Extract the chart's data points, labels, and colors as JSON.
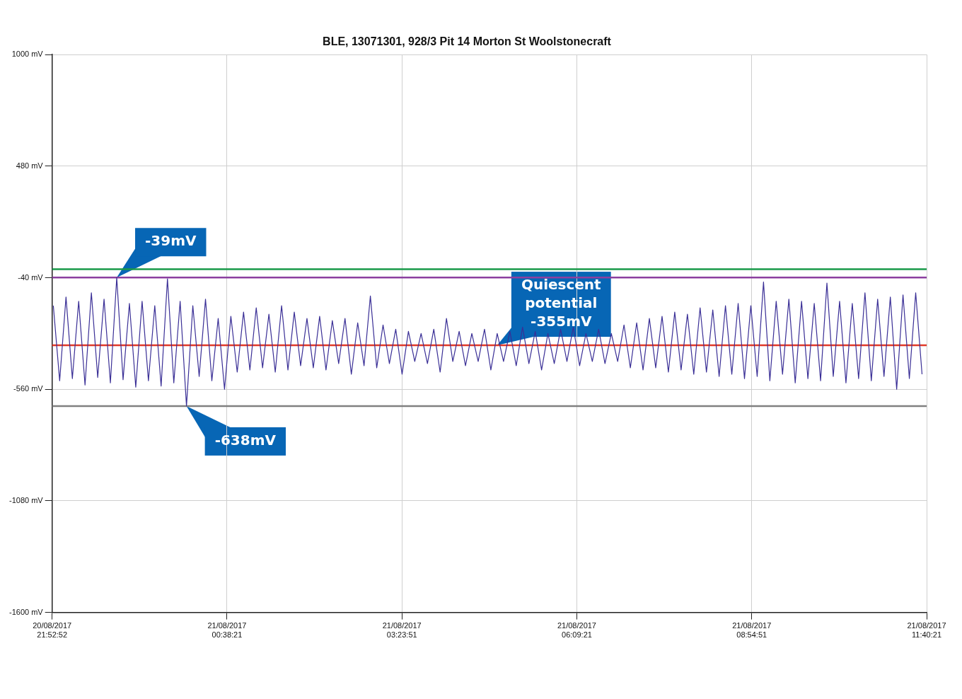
{
  "chart_data": {
    "type": "line",
    "title": "BLE, 13071301, 928/3 Pit 14 Morton St Woolstonecraft",
    "x": [
      "2017-08-20T21:54",
      "2017-08-20T22:00",
      "2017-08-20T22:06",
      "2017-08-20T22:12",
      "2017-08-20T22:18",
      "2017-08-20T22:24",
      "2017-08-20T22:30",
      "2017-08-20T22:36",
      "2017-08-20T22:42",
      "2017-08-20T22:48",
      "2017-08-20T22:54",
      "2017-08-20T23:00",
      "2017-08-20T23:06",
      "2017-08-20T23:12",
      "2017-08-20T23:18",
      "2017-08-20T23:24",
      "2017-08-20T23:30",
      "2017-08-20T23:36",
      "2017-08-20T23:42",
      "2017-08-20T23:48",
      "2017-08-20T23:54",
      "2017-08-21T00:00",
      "2017-08-21T00:06",
      "2017-08-21T00:12",
      "2017-08-21T00:18",
      "2017-08-21T00:24",
      "2017-08-21T00:30",
      "2017-08-21T00:36",
      "2017-08-21T00:42",
      "2017-08-21T00:48",
      "2017-08-21T00:54",
      "2017-08-21T01:00",
      "2017-08-21T01:06",
      "2017-08-21T01:12",
      "2017-08-21T01:18",
      "2017-08-21T01:24",
      "2017-08-21T01:30",
      "2017-08-21T01:36",
      "2017-08-21T01:42",
      "2017-08-21T01:48",
      "2017-08-21T01:54",
      "2017-08-21T02:00",
      "2017-08-21T02:06",
      "2017-08-21T02:12",
      "2017-08-21T02:18",
      "2017-08-21T02:24",
      "2017-08-21T02:30",
      "2017-08-21T02:36",
      "2017-08-21T02:42",
      "2017-08-21T02:48",
      "2017-08-21T02:54",
      "2017-08-21T03:00",
      "2017-08-21T03:06",
      "2017-08-21T03:12",
      "2017-08-21T03:18",
      "2017-08-21T03:24",
      "2017-08-21T03:30",
      "2017-08-21T03:36",
      "2017-08-21T03:42",
      "2017-08-21T03:48",
      "2017-08-21T03:54",
      "2017-08-21T04:00",
      "2017-08-21T04:06",
      "2017-08-21T04:12",
      "2017-08-21T04:18",
      "2017-08-21T04:24",
      "2017-08-21T04:30",
      "2017-08-21T04:36",
      "2017-08-21T04:42",
      "2017-08-21T04:48",
      "2017-08-21T04:54",
      "2017-08-21T05:00",
      "2017-08-21T05:06",
      "2017-08-21T05:12",
      "2017-08-21T05:18",
      "2017-08-21T05:24",
      "2017-08-21T05:30",
      "2017-08-21T05:36",
      "2017-08-21T05:42",
      "2017-08-21T05:48",
      "2017-08-21T05:54",
      "2017-08-21T06:00",
      "2017-08-21T06:06",
      "2017-08-21T06:12",
      "2017-08-21T06:18",
      "2017-08-21T06:24",
      "2017-08-21T06:30",
      "2017-08-21T06:36",
      "2017-08-21T06:42",
      "2017-08-21T06:48",
      "2017-08-21T06:54",
      "2017-08-21T07:00",
      "2017-08-21T07:06",
      "2017-08-21T07:12",
      "2017-08-21T07:18",
      "2017-08-21T07:24",
      "2017-08-21T07:30",
      "2017-08-21T07:36",
      "2017-08-21T07:42",
      "2017-08-21T07:48",
      "2017-08-21T07:54",
      "2017-08-21T08:00",
      "2017-08-21T08:06",
      "2017-08-21T08:12",
      "2017-08-21T08:18",
      "2017-08-21T08:24",
      "2017-08-21T08:30",
      "2017-08-21T08:36",
      "2017-08-21T08:42",
      "2017-08-21T08:48",
      "2017-08-21T08:54",
      "2017-08-21T09:00",
      "2017-08-21T09:06",
      "2017-08-21T09:12",
      "2017-08-21T09:18",
      "2017-08-21T09:24",
      "2017-08-21T09:30",
      "2017-08-21T09:36",
      "2017-08-21T09:42",
      "2017-08-21T09:48",
      "2017-08-21T09:54",
      "2017-08-21T10:00",
      "2017-08-21T10:06",
      "2017-08-21T10:12",
      "2017-08-21T10:18",
      "2017-08-21T10:24",
      "2017-08-21T10:30",
      "2017-08-21T10:36",
      "2017-08-21T10:42",
      "2017-08-21T10:48",
      "2017-08-21T10:54",
      "2017-08-21T11:00",
      "2017-08-21T11:06",
      "2017-08-21T11:12",
      "2017-08-21T11:18",
      "2017-08-21T11:24",
      "2017-08-21T11:30",
      "2017-08-21T11:36"
    ],
    "series": [
      {
        "color": "#3a2f96",
        "values": [
          -170,
          -520,
          -130,
          -510,
          -150,
          -540,
          -110,
          -505,
          -140,
          -530,
          -39,
          -515,
          -160,
          -550,
          -150,
          -520,
          -170,
          -545,
          -45,
          -530,
          -150,
          -638,
          -170,
          -500,
          -140,
          -520,
          -230,
          -560,
          -220,
          -480,
          -200,
          -470,
          -180,
          -460,
          -210,
          -480,
          -170,
          -470,
          -200,
          -450,
          -230,
          -460,
          -220,
          -470,
          -240,
          -440,
          -230,
          -490,
          -250,
          -450,
          -125,
          -460,
          -260,
          -440,
          -280,
          -490,
          -290,
          -430,
          -300,
          -440,
          -280,
          -480,
          -230,
          -430,
          -290,
          -450,
          -300,
          -430,
          -280,
          -470,
          -300,
          -430,
          -290,
          -450,
          -270,
          -440,
          -290,
          -470,
          -300,
          -440,
          -280,
          -430,
          -270,
          -450,
          -300,
          -430,
          -280,
          -440,
          -300,
          -430,
          -260,
          -460,
          -250,
          -470,
          -230,
          -460,
          -220,
          -480,
          -200,
          -470,
          -210,
          -490,
          -180,
          -480,
          -190,
          -500,
          -170,
          -490,
          -160,
          -510,
          -170,
          -500,
          -60,
          -520,
          -150,
          -490,
          -140,
          -530,
          -150,
          -510,
          -160,
          -520,
          -65,
          -500,
          -150,
          -530,
          -160,
          -510,
          -110,
          -520,
          -140,
          -500,
          -130,
          -560,
          -120,
          -510,
          -110,
          -490
        ]
      }
    ],
    "xlim": [
      "2017-08-20T21:52:52",
      "2017-08-21T11:40:21"
    ],
    "xticks": [
      {
        "value": "2017-08-20T21:52:52",
        "label": "20/08/2017 21:52:52"
      },
      {
        "value": "2017-08-21T00:38:21",
        "label": "21/08/2017 00:38:21"
      },
      {
        "value": "2017-08-21T03:23:51",
        "label": "21/08/2017 03:23:51"
      },
      {
        "value": "2017-08-21T06:09:21",
        "label": "21/08/2017 06:09:21"
      },
      {
        "value": "2017-08-21T08:54:51",
        "label": "21/08/2017 08:54:51"
      },
      {
        "value": "2017-08-21T11:40:21",
        "label": "21/08/2017 11:40:21"
      }
    ],
    "ylim": [
      -1600,
      1000
    ],
    "yticks": [
      {
        "value": 1000,
        "label": "1000 mV"
      },
      {
        "value": 480,
        "label": "480 mV"
      },
      {
        "value": -40,
        "label": "-40 mV"
      },
      {
        "value": -560,
        "label": "-560 mV"
      },
      {
        "value": -1080,
        "label": "-1080 mV"
      },
      {
        "value": -1600,
        "label": "-1600 mV"
      }
    ],
    "ref_lines": [
      {
        "axis": "y",
        "value": 0,
        "color": "#1a9a4a"
      },
      {
        "axis": "y",
        "value": -39,
        "color": "#8b3fa0"
      },
      {
        "axis": "y",
        "value": -355,
        "color": "#e03a2a"
      },
      {
        "axis": "y",
        "value": -638,
        "color": "#808080"
      }
    ],
    "annotations": [
      {
        "text": "-39mV",
        "x": "2017-08-20T22:54",
        "y": -39
      },
      {
        "text": "Quiescent potential -355mV",
        "x": "2017-08-21T04:54",
        "y": -355
      },
      {
        "text": "-638mV",
        "x": "2017-08-21T00:00",
        "y": -638
      }
    ],
    "grid": true,
    "marker": "none",
    "line_style": "solid",
    "legend": false
  }
}
